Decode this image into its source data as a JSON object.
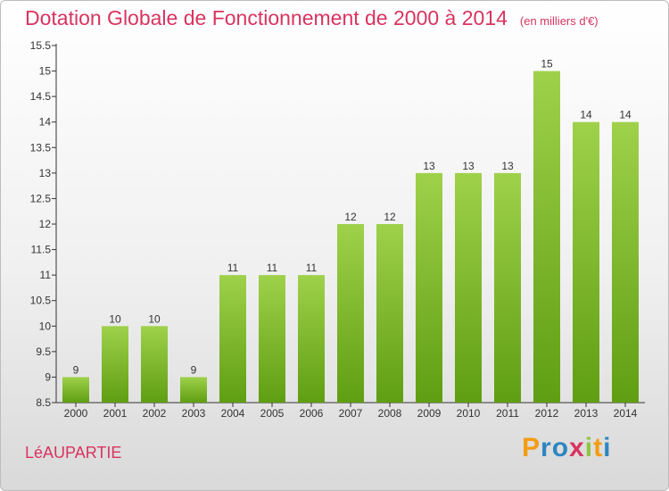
{
  "chart_data": {
    "type": "bar",
    "title": "Dotation Globale de Fonctionnement de 2000 à 2014",
    "unit": "(en milliers d'€)",
    "categories": [
      "2000",
      "2001",
      "2002",
      "2003",
      "2004",
      "2005",
      "2006",
      "2007",
      "2008",
      "2009",
      "2010",
      "2011",
      "2012",
      "2013",
      "2014"
    ],
    "values": [
      9,
      10,
      10,
      9,
      11,
      11,
      11,
      12,
      12,
      13,
      13,
      13,
      15,
      14,
      14
    ],
    "ylim": [
      8.5,
      15.5
    ],
    "yticks": [
      "8.5",
      "9",
      "9.5",
      "10",
      "10.5",
      "11",
      "11.5",
      "12",
      "12.5",
      "13",
      "13.5",
      "14",
      "14.5",
      "15",
      "15.5"
    ],
    "grid": false,
    "bar_color_top": "#9fd14b",
    "bar_color_bottom": "#5f9e12"
  },
  "commune": "LéAUPARTIE",
  "logo": {
    "letters": [
      "P",
      "r",
      "o",
      "x",
      "i",
      "t",
      "i"
    ],
    "colors": [
      "#f39c12",
      "#2e86c1",
      "#2e86c1",
      "#d8345f",
      "#8dc63f",
      "#f39c12",
      "#2e86c1"
    ]
  }
}
